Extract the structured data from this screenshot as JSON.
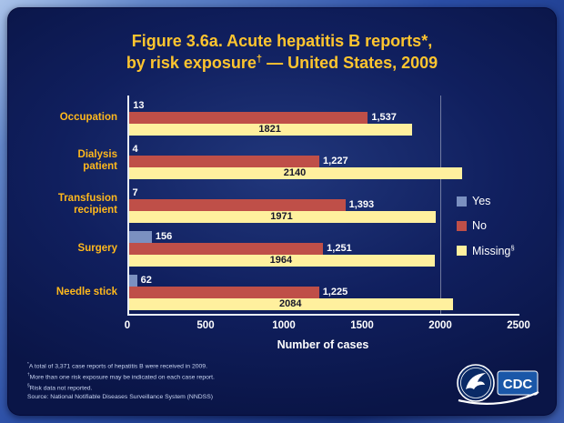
{
  "title": {
    "line1": "Figure 3.6a. Acute hepatitis B reports*,",
    "line2_pre": "by risk exposure",
    "line2_sup": "†",
    "line2_post": " — United States, 2009"
  },
  "chart_data": {
    "type": "bar",
    "orientation": "horizontal",
    "title": "Figure 3.6a. Acute hepatitis B reports, by risk exposure — United States, 2009",
    "xlabel": "Number of cases",
    "xlim": [
      0,
      2500
    ],
    "xticks": [
      0,
      500,
      1000,
      1500,
      2000,
      2500
    ],
    "grid": false,
    "legend_position": "right",
    "categories": [
      "Occupation",
      "Dialysis patient",
      "Transfusion recipient",
      "Surgery",
      "Needle stick"
    ],
    "series": [
      {
        "name": "Yes",
        "color": "#7b90c0",
        "label_inside": false,
        "label_color": "#ffffff",
        "values": [
          13,
          4,
          7,
          156,
          62
        ],
        "labels": [
          "13",
          "4",
          "7",
          "156",
          "62"
        ]
      },
      {
        "name": "No",
        "color": "#bf4f48",
        "label_inside": false,
        "label_color": "#ffffff",
        "values": [
          1537,
          1227,
          1393,
          1251,
          1225
        ],
        "labels": [
          "1,537",
          "1,227",
          "1,393",
          "1,251",
          "1,225"
        ]
      },
      {
        "name": "Missing",
        "color": "#fff09e",
        "label_inside": true,
        "label_color": "#15152a",
        "values": [
          1821,
          2140,
          1971,
          1964,
          2084
        ],
        "labels": [
          "1821",
          "2140",
          "1971",
          "1964",
          "2084"
        ]
      }
    ]
  },
  "legend": {
    "items": [
      {
        "label": "Yes",
        "sup": "",
        "color": "#7b90c0"
      },
      {
        "label": "No",
        "sup": "",
        "color": "#bf4f48"
      },
      {
        "label": "Missing",
        "sup": "§",
        "color": "#fff09e"
      }
    ]
  },
  "footnotes": [
    {
      "sup": "*",
      "text": "A total of 3,371 case reports of hepatitis B were received in 2009."
    },
    {
      "sup": "†",
      "text": "More than one risk exposure may be indicated on each case report."
    },
    {
      "sup": "§",
      "text": "Risk data not reported."
    },
    {
      "sup": "",
      "text": "Source: National Notifiable Diseases Surveillance System (NNDSS)"
    }
  ],
  "logo": {
    "cdc_text": "CDC"
  },
  "colors": {
    "title_gold": "#ffc52f",
    "category_gold": "#ffb81c",
    "panel_bg": "#101f5e",
    "axis_text": "#ffffff"
  }
}
